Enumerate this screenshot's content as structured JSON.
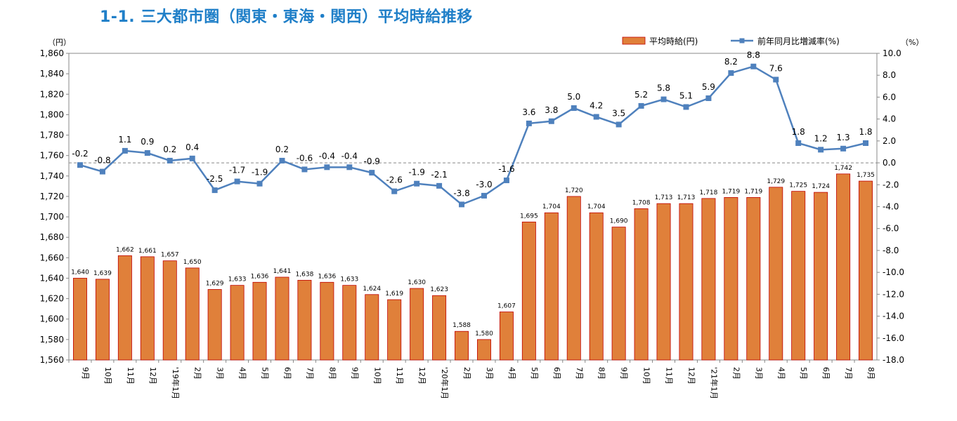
{
  "title": "1-1.  三大都市圏（関東・東海・関西）平均時給推移",
  "colors": {
    "bar": "#e0803a",
    "bar_edge": "#c00000",
    "line": "#4f81bd",
    "marker": "#4f81bd",
    "title": "#1f7fc8"
  },
  "legend": {
    "bar": "平均時給(円)",
    "line": "前年同月比増減率(%)"
  },
  "chart_data": {
    "type": "bar",
    "title": "",
    "left_axis_unit": "（円）",
    "right_axis_unit": "（%）",
    "categories": [
      "9月",
      "10月",
      "11月",
      "12月",
      "'19年1月",
      "2月",
      "3月",
      "4月",
      "5月",
      "6月",
      "7月",
      "8月",
      "9月",
      "10月",
      "11月",
      "12月",
      "'20年1月",
      "2月",
      "3月",
      "4月",
      "5月",
      "6月",
      "7月",
      "8月",
      "9月",
      "10月",
      "11月",
      "12月",
      "'21年1月",
      "2月",
      "3月",
      "4月",
      "5月",
      "6月",
      "7月",
      "8月"
    ],
    "series": [
      {
        "name": "平均時給(円)",
        "type": "bar",
        "axis": "left",
        "values": [
          1640,
          1639,
          1662,
          1661,
          1657,
          1650,
          1629,
          1633,
          1636,
          1641,
          1638,
          1636,
          1633,
          1624,
          1619,
          1630,
          1623,
          1588,
          1580,
          1607,
          1695,
          1704,
          1720,
          1704,
          1690,
          1708,
          1713,
          1713,
          1718,
          1719,
          1719,
          1729,
          1725,
          1724,
          1742,
          1735
        ],
        "labels": [
          "1,640",
          "1,639",
          "1,662",
          "1,661",
          "1,657",
          "1,650",
          "1,629",
          "1,633",
          "1,636",
          "1,641",
          "1,638",
          "1,636",
          "1,633",
          "1,624",
          "1,619",
          "1,630",
          "1,623",
          "1,588",
          "1,580",
          "1,607",
          "1,695",
          "1,704",
          "1,720",
          "1,704",
          "1,690",
          "1,708",
          "1,713",
          "1,713",
          "1,718",
          "1,719",
          "1,719",
          "1,729",
          "1,725",
          "1,724",
          "1,742",
          "1,735"
        ]
      },
      {
        "name": "前年同月比増減率(%)",
        "type": "line",
        "axis": "right",
        "values": [
          -0.2,
          -0.8,
          1.1,
          0.9,
          0.2,
          0.4,
          -2.5,
          -1.7,
          -1.9,
          0.2,
          -0.6,
          -0.4,
          -0.4,
          -0.9,
          -2.6,
          -1.9,
          -2.1,
          -3.8,
          -3.0,
          -1.6,
          3.6,
          3.8,
          5.0,
          4.2,
          3.5,
          5.2,
          5.8,
          5.1,
          5.9,
          8.2,
          8.8,
          7.6,
          1.8,
          1.2,
          1.3,
          1.8
        ],
        "labels": [
          "-0.2",
          "-0.8",
          "1.1",
          "0.9",
          "0.2",
          "0.4",
          "-2.5",
          "-1.7",
          "-1.9",
          "0.2",
          "-0.6",
          "-0.4",
          "-0.4",
          "-0.9",
          "-2.6",
          "-1.9",
          "-2.1",
          "-3.8",
          "-3.0",
          "-1.6",
          "3.6",
          "3.8",
          "5.0",
          "4.2",
          "3.5",
          "5.2",
          "5.8",
          "5.1",
          "5.9",
          "8.2",
          "8.8",
          "7.6",
          "1.8",
          "1.2",
          "1.3",
          "1.8"
        ]
      }
    ],
    "ylim_left": [
      1560,
      1860
    ],
    "ylim_right": [
      -18.0,
      10.0
    ],
    "left_ticks": [
      "1,560",
      "1,580",
      "1,600",
      "1,620",
      "1,640",
      "1,660",
      "1,680",
      "1,700",
      "1,720",
      "1,740",
      "1,760",
      "1,780",
      "1,800",
      "1,820",
      "1,840",
      "1,860"
    ],
    "right_ticks": [
      "-18.0",
      "-16.0",
      "-14.0",
      "-12.0",
      "-10.0",
      "-8.0",
      "-6.0",
      "-4.0",
      "-2.0",
      "0.0",
      "2.0",
      "4.0",
      "6.0",
      "8.0",
      "10.0"
    ],
    "zero_reference_line": true,
    "legend_position": "top-right"
  }
}
